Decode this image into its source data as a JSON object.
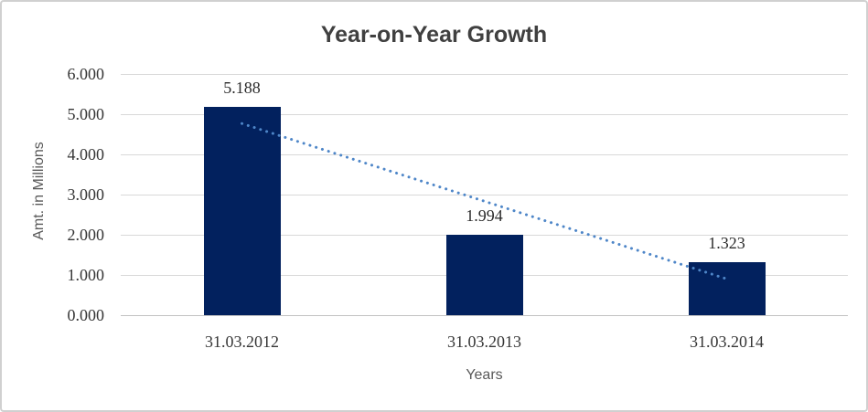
{
  "chart_data": {
    "type": "bar",
    "title": "Year-on-Year Growth",
    "xlabel": "Years",
    "ylabel": "Amt. in Millions",
    "categories": [
      "31.03.2012",
      "31.03.2013",
      "31.03.2014"
    ],
    "values": [
      5.188,
      1.994,
      1.323
    ],
    "data_labels": [
      "5.188",
      "1.994",
      "1.323"
    ],
    "y_ticks": [
      "0.000",
      "1.000",
      "2.000",
      "3.000",
      "4.000",
      "5.000",
      "6.000"
    ],
    "ylim": [
      0,
      6
    ],
    "grid": true,
    "legend": false,
    "bar_color": "#02215e",
    "gridline_color": "#d9d9d9",
    "axis_line_color": "#c2c2c2",
    "title_color": "#404040",
    "axis_title_color": "#595959",
    "tick_label_color": "#363636",
    "trendline": {
      "type": "linear_fit",
      "style": "dotted",
      "color": "#4e86c8"
    }
  }
}
